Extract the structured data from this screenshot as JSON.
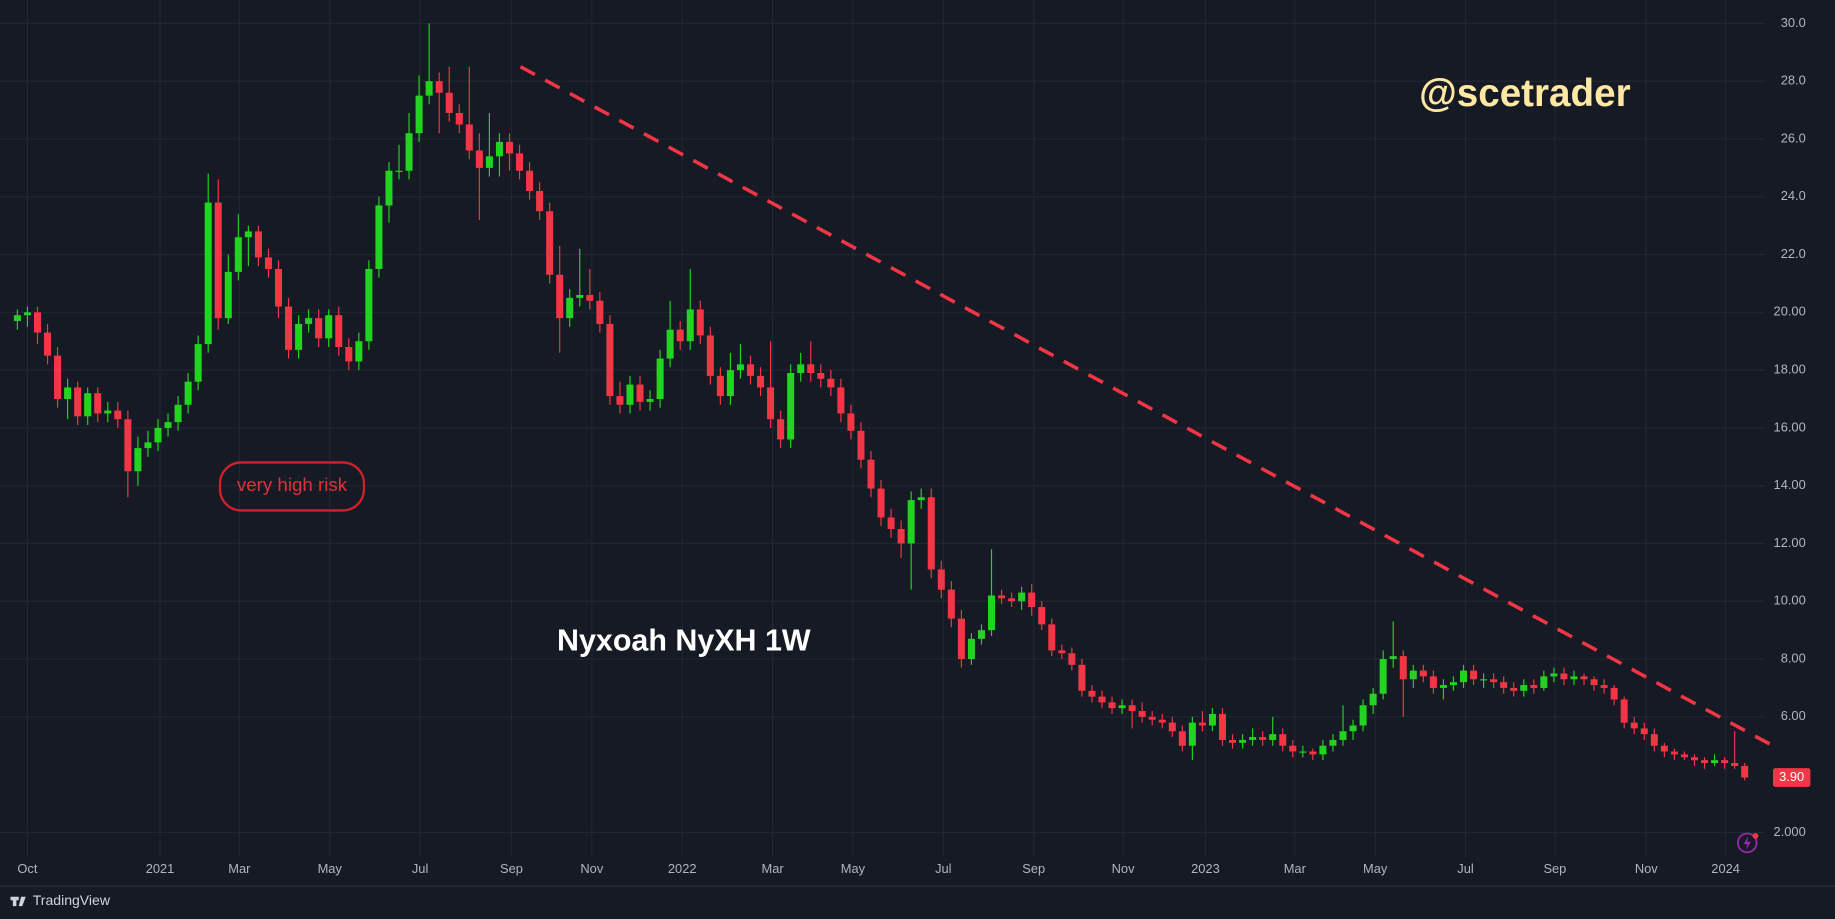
{
  "chart_data": {
    "type": "candlestick",
    "annotations": {
      "handle": "@scetrader",
      "label": "Nyxoah NyXH 1W",
      "risk": "very high risk",
      "brand": "TradingView"
    },
    "up_color": "#22d31f",
    "down_color": "#f23645",
    "grid": true,
    "xlim": [
      -0.8,
      174
    ],
    "xticks": [
      {
        "value": 1.0,
        "label": "Oct"
      },
      {
        "value": 14.2,
        "label": "2021"
      },
      {
        "value": 22.1,
        "label": "Mar"
      },
      {
        "value": 31.1,
        "label": "May"
      },
      {
        "value": 40.1,
        "label": "Jul"
      },
      {
        "value": 49.2,
        "label": "Sep"
      },
      {
        "value": 57.2,
        "label": "Nov"
      },
      {
        "value": 66.2,
        "label": "2022"
      },
      {
        "value": 75.2,
        "label": "Mar"
      },
      {
        "value": 83.2,
        "label": "May"
      },
      {
        "value": 92.2,
        "label": "Jul"
      },
      {
        "value": 101.2,
        "label": "Sep"
      },
      {
        "value": 110.1,
        "label": "Nov"
      },
      {
        "value": 118.3,
        "label": "2023"
      },
      {
        "value": 127.2,
        "label": "Mar"
      },
      {
        "value": 135.2,
        "label": "May"
      },
      {
        "value": 144.2,
        "label": "Jul"
      },
      {
        "value": 153.1,
        "label": "Sep"
      },
      {
        "value": 162.2,
        "label": "Nov"
      },
      {
        "value": 170.1,
        "label": "2024"
      }
    ],
    "ylim": [
      1.15,
      30.81
    ],
    "yticks": [
      {
        "value": 2,
        "label": "2.000"
      },
      {
        "value": 6,
        "label": "6.00"
      },
      {
        "value": 8,
        "label": "8.00"
      },
      {
        "value": 10,
        "label": "10.00"
      },
      {
        "value": 12,
        "label": "12.00"
      },
      {
        "value": 14,
        "label": "14.00"
      },
      {
        "value": 16,
        "label": "16.00"
      },
      {
        "value": 18,
        "label": "18.00"
      },
      {
        "value": 20,
        "label": "20.00"
      },
      {
        "value": 22,
        "label": "22.0"
      },
      {
        "value": 24,
        "label": "24.0"
      },
      {
        "value": 26,
        "label": "26.0"
      },
      {
        "value": 28,
        "label": "28.0"
      },
      {
        "value": 30,
        "label": "30.0"
      }
    ],
    "price_marker": {
      "value": 3.9,
      "label": "3.90"
    },
    "trend_line": {
      "color": "#f23645",
      "x": [
        50.1,
        174.8
      ],
      "y": [
        28.5,
        5.0
      ]
    },
    "ohlc": [
      [
        19.7,
        20.1,
        19.4,
        19.9
      ],
      [
        19.9,
        20.2,
        19.5,
        20.0
      ],
      [
        20.0,
        20.2,
        18.9,
        19.3
      ],
      [
        19.3,
        19.6,
        18.2,
        18.5
      ],
      [
        18.5,
        18.8,
        16.7,
        17.0
      ],
      [
        17.0,
        17.7,
        16.3,
        17.4
      ],
      [
        17.4,
        17.6,
        16.1,
        16.4
      ],
      [
        16.4,
        17.4,
        16.1,
        17.2
      ],
      [
        17.2,
        17.4,
        16.2,
        16.5
      ],
      [
        16.5,
        16.9,
        16.2,
        16.6
      ],
      [
        16.6,
        16.9,
        16.0,
        16.3
      ],
      [
        16.3,
        16.6,
        13.6,
        14.5
      ],
      [
        14.5,
        15.7,
        14.0,
        15.3
      ],
      [
        15.3,
        15.9,
        15.0,
        15.5
      ],
      [
        15.5,
        16.3,
        15.2,
        16.0
      ],
      [
        16.0,
        16.5,
        15.7,
        16.2
      ],
      [
        16.2,
        17.1,
        15.9,
        16.8
      ],
      [
        16.8,
        17.9,
        16.5,
        17.6
      ],
      [
        17.6,
        19.2,
        17.3,
        18.9
      ],
      [
        18.9,
        24.8,
        18.6,
        23.8
      ],
      [
        23.8,
        24.6,
        19.4,
        19.8
      ],
      [
        19.8,
        22.0,
        19.6,
        21.4
      ],
      [
        21.4,
        23.4,
        21.1,
        22.6
      ],
      [
        22.6,
        23.0,
        21.6,
        22.8
      ],
      [
        22.8,
        23.0,
        21.6,
        21.9
      ],
      [
        21.9,
        22.2,
        21.2,
        21.5
      ],
      [
        21.5,
        21.8,
        19.8,
        20.2
      ],
      [
        20.2,
        20.5,
        18.4,
        18.7
      ],
      [
        18.7,
        19.9,
        18.4,
        19.6
      ],
      [
        19.6,
        20.1,
        19.3,
        19.8
      ],
      [
        19.8,
        20.1,
        18.8,
        19.1
      ],
      [
        19.1,
        20.1,
        18.8,
        19.9
      ],
      [
        19.9,
        20.2,
        18.5,
        18.8
      ],
      [
        18.8,
        19.1,
        18.0,
        18.3
      ],
      [
        18.3,
        19.3,
        18.0,
        19.0
      ],
      [
        19.0,
        21.8,
        18.7,
        21.5
      ],
      [
        21.5,
        24.0,
        21.2,
        23.7
      ],
      [
        23.7,
        25.2,
        23.1,
        24.9
      ],
      [
        24.9,
        25.8,
        24.6,
        24.9
      ],
      [
        24.9,
        26.9,
        24.6,
        26.2
      ],
      [
        26.2,
        28.2,
        25.9,
        27.5
      ],
      [
        27.5,
        30.0,
        27.2,
        28.0
      ],
      [
        28.0,
        28.3,
        26.2,
        27.6
      ],
      [
        27.6,
        28.5,
        26.6,
        26.9
      ],
      [
        26.9,
        27.2,
        26.2,
        26.5
      ],
      [
        26.5,
        28.5,
        25.3,
        25.6
      ],
      [
        25.6,
        26.2,
        23.2,
        25.0
      ],
      [
        25.0,
        26.9,
        24.7,
        25.4
      ],
      [
        25.4,
        26.2,
        24.7,
        25.9
      ],
      [
        25.9,
        26.2,
        24.9,
        25.5
      ],
      [
        25.5,
        25.8,
        24.6,
        24.9
      ],
      [
        24.9,
        25.2,
        23.9,
        24.2
      ],
      [
        24.2,
        24.5,
        23.2,
        23.5
      ],
      [
        23.5,
        23.8,
        21.0,
        21.3
      ],
      [
        21.3,
        22.3,
        18.6,
        19.8
      ],
      [
        19.8,
        20.8,
        19.5,
        20.5
      ],
      [
        20.5,
        22.2,
        20.2,
        20.6
      ],
      [
        20.6,
        21.5,
        20.1,
        20.4
      ],
      [
        20.4,
        20.7,
        19.3,
        19.6
      ],
      [
        19.6,
        19.9,
        16.8,
        17.1
      ],
      [
        17.1,
        17.6,
        16.5,
        16.8
      ],
      [
        16.8,
        17.8,
        16.5,
        17.5
      ],
      [
        17.5,
        17.8,
        16.6,
        16.9
      ],
      [
        16.9,
        17.3,
        16.6,
        17.0
      ],
      [
        17.0,
        18.7,
        16.7,
        18.4
      ],
      [
        18.4,
        20.4,
        18.1,
        19.4
      ],
      [
        19.4,
        19.7,
        18.7,
        19.0
      ],
      [
        19.0,
        21.5,
        18.7,
        20.1
      ],
      [
        20.1,
        20.4,
        18.9,
        19.2
      ],
      [
        19.2,
        19.5,
        17.5,
        17.8
      ],
      [
        17.8,
        18.1,
        16.8,
        17.1
      ],
      [
        17.1,
        18.6,
        16.8,
        18.0
      ],
      [
        18.0,
        18.9,
        17.7,
        18.2
      ],
      [
        18.2,
        18.5,
        17.5,
        17.8
      ],
      [
        17.8,
        18.1,
        17.1,
        17.4
      ],
      [
        17.4,
        19.0,
        16.0,
        16.3
      ],
      [
        16.3,
        16.6,
        15.3,
        15.6
      ],
      [
        15.6,
        18.2,
        15.3,
        17.9
      ],
      [
        17.9,
        18.6,
        17.6,
        18.2
      ],
      [
        18.2,
        19.0,
        17.6,
        17.9
      ],
      [
        17.9,
        18.2,
        17.4,
        17.7
      ],
      [
        17.7,
        18.0,
        17.1,
        17.4
      ],
      [
        17.4,
        17.7,
        16.2,
        16.5
      ],
      [
        16.5,
        16.8,
        15.6,
        15.9
      ],
      [
        15.9,
        16.2,
        14.6,
        14.9
      ],
      [
        14.9,
        15.2,
        13.6,
        13.9
      ],
      [
        13.9,
        14.2,
        12.6,
        12.9
      ],
      [
        12.9,
        13.2,
        12.2,
        12.5
      ],
      [
        12.5,
        12.8,
        11.5,
        12.0
      ],
      [
        12.0,
        13.8,
        10.4,
        13.5
      ],
      [
        13.5,
        13.9,
        13.2,
        13.6
      ],
      [
        13.6,
        13.9,
        10.8,
        11.1
      ],
      [
        11.1,
        11.4,
        10.1,
        10.4
      ],
      [
        10.4,
        10.7,
        9.1,
        9.4
      ],
      [
        9.4,
        9.7,
        7.7,
        8.0
      ],
      [
        8.0,
        8.9,
        7.8,
        8.7
      ],
      [
        8.7,
        9.2,
        8.5,
        9.0
      ],
      [
        9.0,
        11.8,
        8.8,
        10.2
      ],
      [
        10.2,
        10.4,
        9.9,
        10.1
      ],
      [
        10.1,
        10.3,
        9.8,
        10.0
      ],
      [
        10.0,
        10.5,
        9.7,
        10.3
      ],
      [
        10.3,
        10.6,
        9.5,
        9.8
      ],
      [
        9.8,
        10.0,
        9.0,
        9.2
      ],
      [
        9.2,
        9.4,
        8.1,
        8.3
      ],
      [
        8.3,
        8.5,
        8.0,
        8.2
      ],
      [
        8.2,
        8.4,
        7.6,
        7.8
      ],
      [
        7.8,
        8.0,
        6.7,
        6.9
      ],
      [
        6.9,
        7.1,
        6.5,
        6.7
      ],
      [
        6.7,
        6.9,
        6.3,
        6.5
      ],
      [
        6.5,
        6.7,
        6.1,
        6.3
      ],
      [
        6.3,
        6.6,
        6.1,
        6.4
      ],
      [
        6.4,
        6.6,
        5.6,
        6.2
      ],
      [
        6.2,
        6.5,
        5.8,
        6.0
      ],
      [
        6.0,
        6.2,
        5.7,
        5.9
      ],
      [
        5.9,
        6.1,
        5.6,
        5.8
      ],
      [
        5.8,
        6.0,
        5.3,
        5.5
      ],
      [
        5.5,
        5.7,
        4.8,
        5.0
      ],
      [
        5.0,
        6.0,
        4.5,
        5.8
      ],
      [
        5.8,
        6.2,
        5.5,
        5.7
      ],
      [
        5.7,
        6.3,
        5.5,
        6.1
      ],
      [
        6.1,
        6.3,
        5.0,
        5.2
      ],
      [
        5.2,
        5.4,
        4.9,
        5.1
      ],
      [
        5.1,
        5.4,
        4.9,
        5.2
      ],
      [
        5.2,
        5.6,
        5.0,
        5.3
      ],
      [
        5.3,
        5.5,
        5.0,
        5.2
      ],
      [
        5.2,
        6.0,
        5.0,
        5.4
      ],
      [
        5.4,
        5.6,
        4.8,
        5.0
      ],
      [
        5.0,
        5.2,
        4.6,
        4.8
      ],
      [
        4.8,
        5.0,
        4.6,
        4.8
      ],
      [
        4.8,
        4.9,
        4.5,
        4.7
      ],
      [
        4.7,
        5.2,
        4.5,
        5.0
      ],
      [
        5.0,
        5.4,
        4.8,
        5.2
      ],
      [
        5.2,
        6.4,
        5.0,
        5.5
      ],
      [
        5.5,
        5.9,
        5.2,
        5.7
      ],
      [
        5.7,
        6.6,
        5.5,
        6.4
      ],
      [
        6.4,
        7.0,
        6.1,
        6.8
      ],
      [
        6.8,
        8.3,
        6.6,
        8.0
      ],
      [
        8.0,
        9.3,
        7.7,
        8.1
      ],
      [
        8.1,
        8.3,
        6.0,
        7.3
      ],
      [
        7.3,
        7.8,
        7.0,
        7.6
      ],
      [
        7.6,
        7.8,
        7.2,
        7.4
      ],
      [
        7.4,
        7.6,
        6.8,
        7.0
      ],
      [
        7.0,
        7.3,
        6.6,
        7.1
      ],
      [
        7.1,
        7.4,
        6.9,
        7.2
      ],
      [
        7.2,
        7.8,
        7.0,
        7.6
      ],
      [
        7.6,
        7.8,
        7.1,
        7.3
      ],
      [
        7.3,
        7.5,
        7.0,
        7.3
      ],
      [
        7.3,
        7.5,
        7.0,
        7.2
      ],
      [
        7.2,
        7.4,
        6.8,
        7.0
      ],
      [
        7.0,
        7.2,
        6.7,
        6.9
      ],
      [
        6.9,
        7.3,
        6.7,
        7.1
      ],
      [
        7.1,
        7.3,
        6.8,
        7.0
      ],
      [
        7.0,
        7.6,
        6.9,
        7.4
      ],
      [
        7.4,
        7.7,
        7.2,
        7.5
      ],
      [
        7.5,
        7.7,
        7.1,
        7.3
      ],
      [
        7.3,
        7.6,
        7.1,
        7.4
      ],
      [
        7.4,
        7.5,
        7.1,
        7.3
      ],
      [
        7.3,
        7.4,
        6.9,
        7.1
      ],
      [
        7.1,
        7.3,
        6.8,
        7.0
      ],
      [
        7.0,
        7.1,
        6.4,
        6.6
      ],
      [
        6.6,
        6.7,
        5.6,
        5.8
      ],
      [
        5.8,
        6.0,
        5.4,
        5.6
      ],
      [
        5.6,
        5.8,
        5.2,
        5.4
      ],
      [
        5.4,
        5.6,
        4.8,
        5.0
      ],
      [
        5.0,
        5.1,
        4.6,
        4.8
      ],
      [
        4.8,
        4.9,
        4.5,
        4.7
      ],
      [
        4.7,
        4.8,
        4.5,
        4.6
      ],
      [
        4.6,
        4.7,
        4.3,
        4.5
      ],
      [
        4.5,
        4.6,
        4.2,
        4.4
      ],
      [
        4.4,
        4.7,
        4.3,
        4.5
      ],
      [
        4.5,
        4.6,
        4.2,
        4.4
      ],
      [
        4.4,
        5.5,
        4.2,
        4.3
      ],
      [
        4.3,
        4.4,
        3.8,
        3.9
      ]
    ]
  }
}
